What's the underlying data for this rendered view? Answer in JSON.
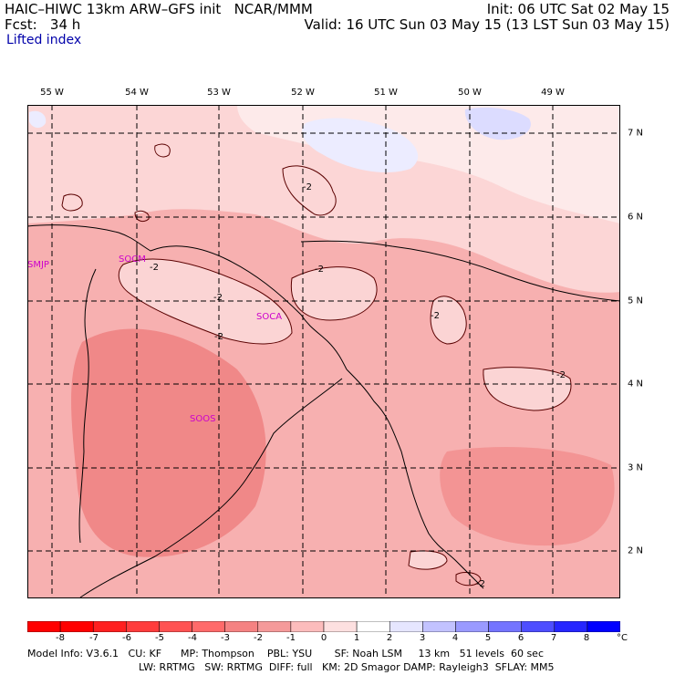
{
  "header": {
    "line1_left": "HAIC–HIWC 13km ARW–GFS init   NCAR/MMM",
    "line2_left": "Fcst:   34 h",
    "line1_right": "Init: 06 UTC Sat 02 May 15",
    "line2_right": "Valid: 16 UTC Sun 03 May 15 (13 LST Sun 03 May 15)",
    "field_name": "Lifted index"
  },
  "map": {
    "longitude_labels": [
      "55 W",
      "54 W",
      "53 W",
      "52 W",
      "51 W",
      "50 W",
      "49 W"
    ],
    "latitude_labels": [
      "7 N",
      "6 N",
      "5 N",
      "4 N",
      "3 N",
      "2 N"
    ],
    "contour_labels": [
      "-2",
      "-2",
      "-2",
      "-2",
      "-2",
      "-2",
      "-2",
      "-2"
    ],
    "stations": [
      "SMJP",
      "SOCM",
      "SOCA",
      "SOOS"
    ]
  },
  "colorbar": {
    "ticks": [
      "-8",
      "-7",
      "-6",
      "-5",
      "-4",
      "-3",
      "-2",
      "-1",
      "0",
      "1",
      "2",
      "3",
      "4",
      "5",
      "6",
      "7",
      "8"
    ],
    "unit": "°C",
    "colors": [
      "#ff0000",
      "#ff2020",
      "#ff3c3c",
      "#ff5252",
      "#ff6a6a",
      "#f58282",
      "#f59a9a",
      "#fcbcbc",
      "#fde0e0",
      "#ffffff",
      "#e6e6ff",
      "#c2c2ff",
      "#9a9aff",
      "#7474ff",
      "#4e4eff",
      "#2626ff",
      "#0000ff"
    ]
  },
  "footer": {
    "line1": "Model Info: V3.6.1   CU: KF      MP: Thompson    PBL: YSU       SF: Noah LSM     13 km   51 levels  60 sec",
    "line2": "LW: RRTMG   SW: RRTMG  DIFF: full   KM: 2D Smagor DAMP: Rayleigh3  SFLAY: MM5"
  }
}
